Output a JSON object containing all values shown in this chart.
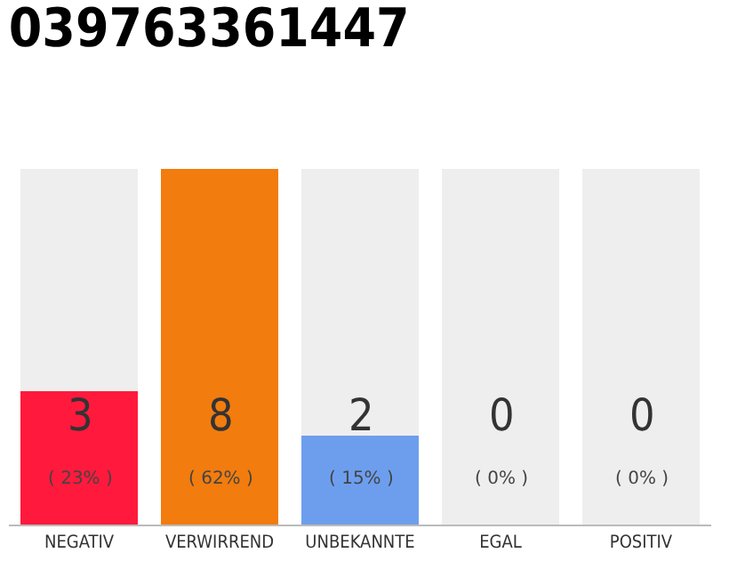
{
  "chart_data": {
    "type": "bar",
    "title": "039763361447",
    "categories": [
      "NEGATIV",
      "VERWIRREND",
      "UNBEKANNTE",
      "EGAL",
      "POSITIV"
    ],
    "stacked": true,
    "series": [
      {
        "colors": [
          "#ff1a3d",
          "#f27c0e",
          "#6d9eee",
          null,
          null
        ],
        "values": [
          3,
          8,
          2,
          0,
          0
        ],
        "value_labels": [
          "3",
          "8",
          "2",
          null,
          null
        ]
      },
      {
        "color": "#eeeeee",
        "values": [
          5,
          0,
          6,
          8,
          8
        ]
      }
    ],
    "ylim": [
      0,
      8
    ],
    "tick_labels": "x",
    "annotations": [
      "( 23% )",
      "( 62% )",
      "( 15% )",
      "( 0% )",
      "( 0% )",
      {
        "text": "0",
        "x": "EGAL",
        "y": 0
      },
      {
        "text": "0",
        "x": "POSITIV",
        "y": 0
      }
    ]
  }
}
